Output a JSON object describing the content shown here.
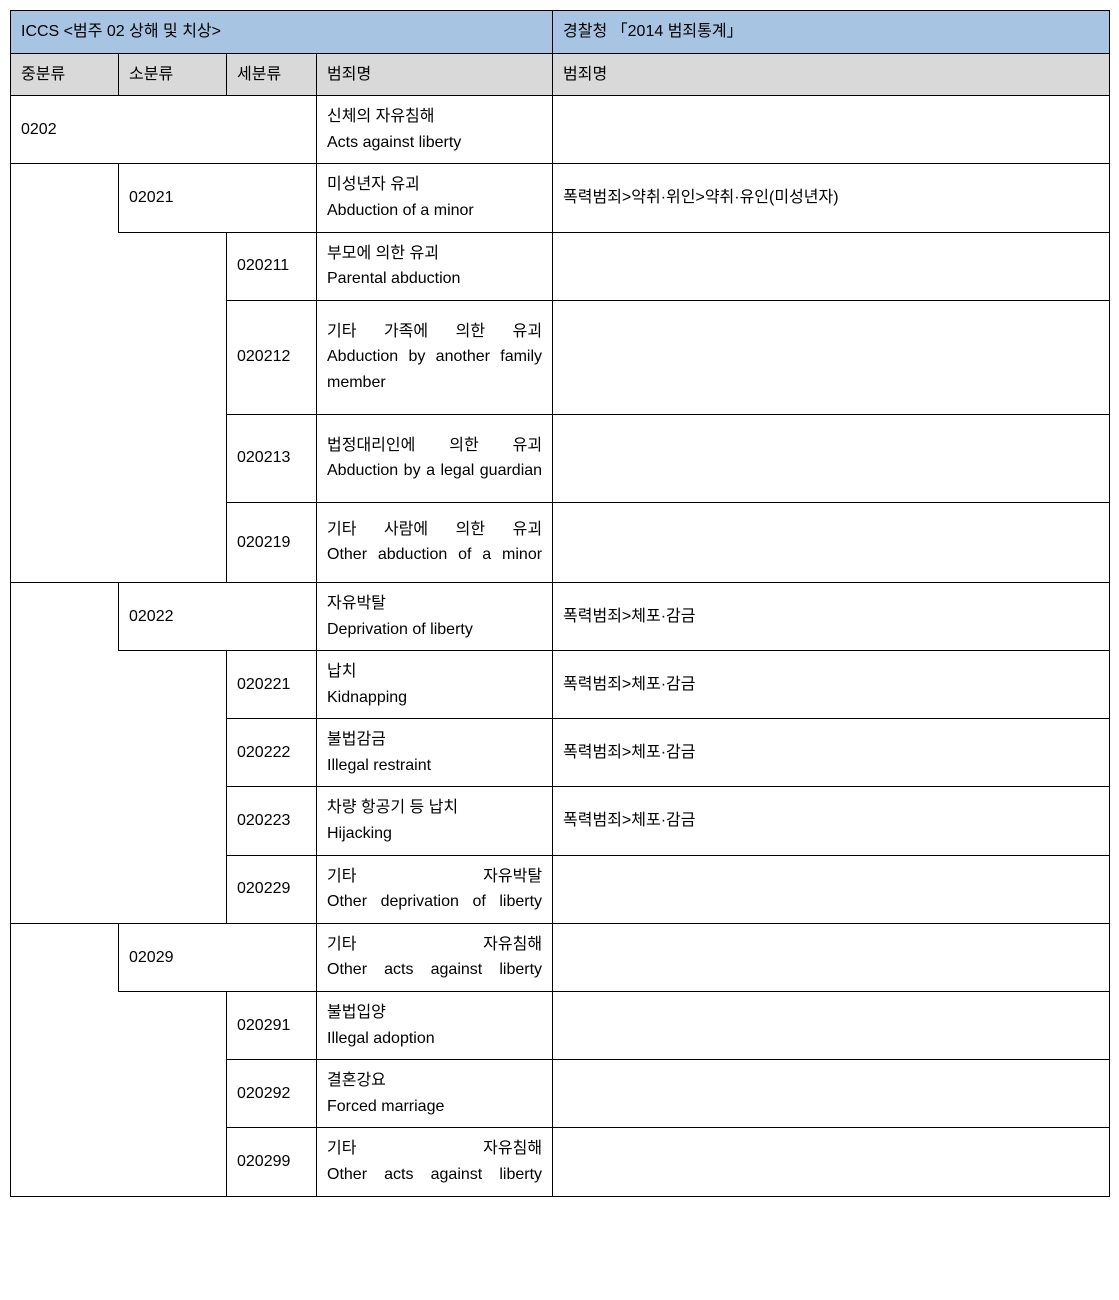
{
  "header": {
    "left": "ICCS <범주 02 상해 및 치상>",
    "right": "경찰청 「2014 범죄통계」"
  },
  "subheader": {
    "jung": "중분류",
    "so": "소분류",
    "se": "세분류",
    "crime": "범죄명",
    "police": "범죄명"
  },
  "rows": {
    "r0202": {
      "code": "0202",
      "crime": "신체의 자유침해\nActs against liberty",
      "police": ""
    },
    "r02021": {
      "code": "02021",
      "crime": "미성년자 유괴\nAbduction of a minor",
      "police": "폭력범죄>약취·위인>약취·유인(미성년자)"
    },
    "r020211": {
      "code": "020211",
      "crime": "부모에 의한 유괴\nParental abduction",
      "police": ""
    },
    "r020212": {
      "code": "020212",
      "crime": "기타 가족에 의한 유괴\nAbduction by another family member",
      "police": ""
    },
    "r020213": {
      "code": "020213",
      "crime": "법정대리인에 의한 유괴\nAbduction by a legal guardian",
      "police": ""
    },
    "r020219": {
      "code": "020219",
      "crime": "기타 사람에 의한 유괴\nOther abduction of a minor",
      "police": ""
    },
    "r02022": {
      "code": "02022",
      "crime": "자유박탈\nDeprivation of liberty",
      "police": "폭력범죄>체포·감금"
    },
    "r020221": {
      "code": "020221",
      "crime": "납치\nKidnapping",
      "police": "폭력범죄>체포·감금"
    },
    "r020222": {
      "code": "020222",
      "crime": "불법감금\nIllegal restraint",
      "police": "폭력범죄>체포·감금"
    },
    "r020223": {
      "code": "020223",
      "crime": "차량 항공기 등 납치\nHijacking",
      "police": "폭력범죄>체포·감금"
    },
    "r020229": {
      "code": "020229",
      "crime": "기타 자유박탈\nOther deprivation of liberty",
      "police": ""
    },
    "r02029": {
      "code": "02029",
      "crime": "기타 자유침해\nOther acts against liberty",
      "police": ""
    },
    "r020291": {
      "code": "020291",
      "crime": "불법입양\nIllegal adoption",
      "police": ""
    },
    "r020292": {
      "code": "020292",
      "crime": "결혼강요\nForced marriage",
      "police": ""
    },
    "r020299": {
      "code": "020299",
      "crime": "기타 자유침해\nOther acts against liberty",
      "police": ""
    }
  }
}
